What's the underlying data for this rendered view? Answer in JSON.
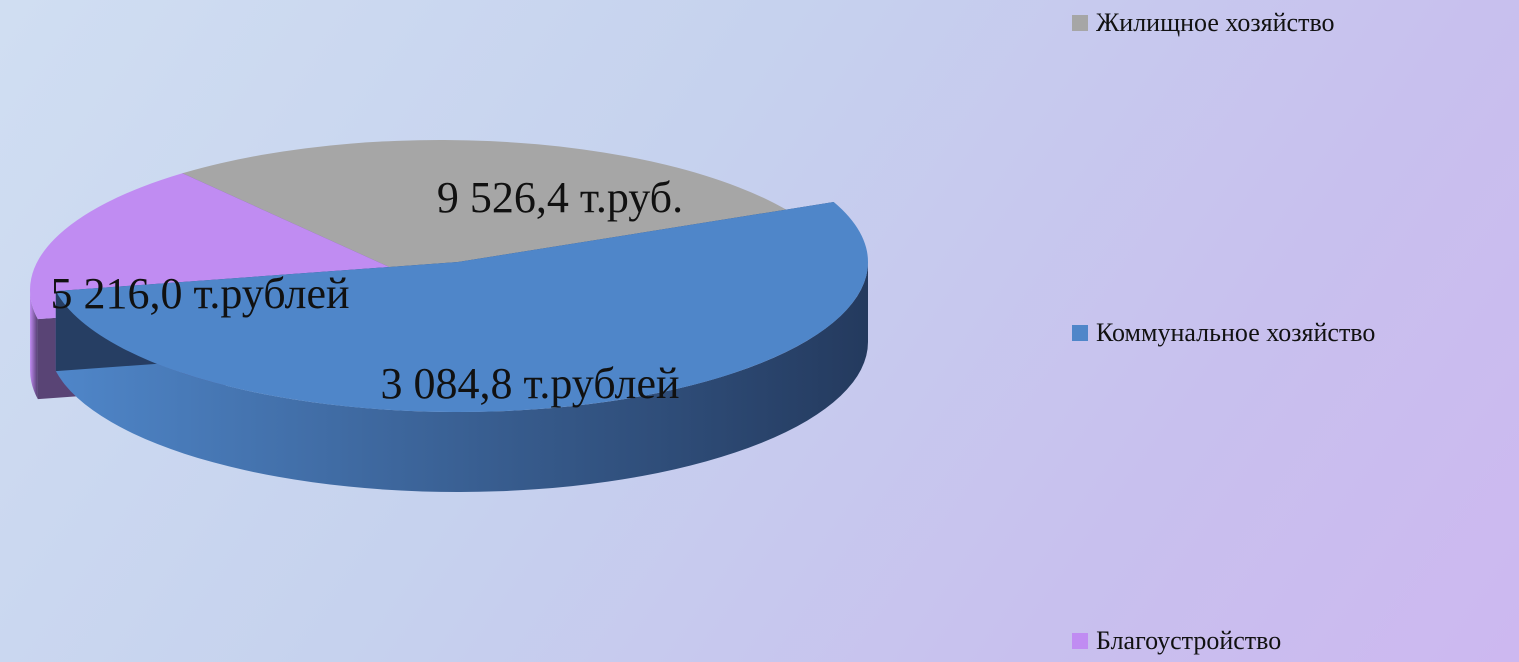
{
  "chart_data": {
    "type": "pie",
    "three_d": true,
    "title": "",
    "legend_position": "right",
    "slices": [
      {
        "name": "Жилищное хозяйство",
        "value": 5216.0,
        "label": "5 216,0 т.рублей",
        "color": "#a6a6a6",
        "side_color": "#7f7f7f"
      },
      {
        "name": "Коммунальное хозяйство",
        "value": 9526.4,
        "label": "9 526,4 т.руб.",
        "color": "#4f86c9",
        "side_color": "#243a5e"
      },
      {
        "name": "Благоустройство",
        "value": 3084.8,
        "label": "3 084,8 т.рублей",
        "color": "#c08cf2",
        "side_color": "#523c6e"
      }
    ]
  }
}
